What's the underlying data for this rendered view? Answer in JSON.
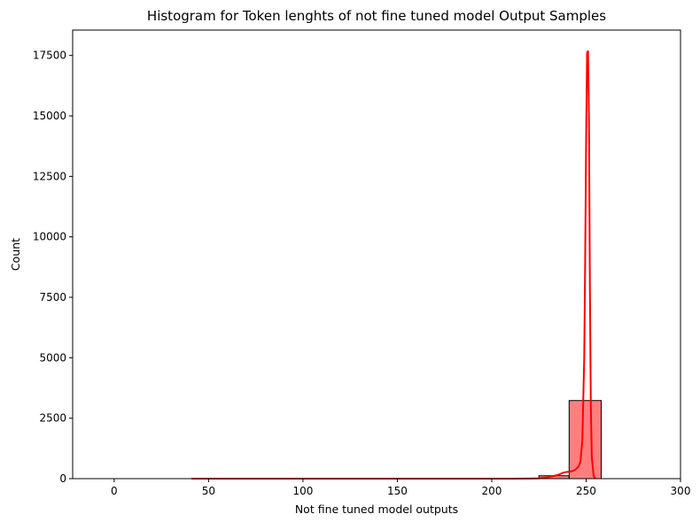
{
  "chart_data": {
    "type": "bar",
    "title": "Histogram for Token lenghts of not fine tuned model Output Samples",
    "xlabel": "Not fine tuned model outputs",
    "ylabel": "Count",
    "xlim": [
      -22,
      300
    ],
    "ylim": [
      0,
      18550
    ],
    "x_ticks": [
      0,
      50,
      100,
      150,
      200,
      250,
      300
    ],
    "y_ticks": [
      0,
      2500,
      5000,
      7500,
      10000,
      12500,
      15000,
      17500
    ],
    "bar_color": "#ff7f7f",
    "line_color": "#ff0000",
    "grid": false,
    "series": [
      {
        "kind": "histogram",
        "bins": [
          {
            "start": 41.0,
            "end": 56.6,
            "count": 0
          },
          {
            "start": 56.6,
            "end": 72.2,
            "count": 0
          },
          {
            "start": 72.2,
            "end": 87.8,
            "count": 0
          },
          {
            "start": 87.8,
            "end": 103.4,
            "count": 0
          },
          {
            "start": 103.4,
            "end": 119.0,
            "count": 0
          },
          {
            "start": 119.0,
            "end": 134.6,
            "count": 0
          },
          {
            "start": 134.6,
            "end": 150.2,
            "count": 0
          },
          {
            "start": 150.2,
            "end": 165.8,
            "count": 0
          },
          {
            "start": 165.8,
            "end": 181.4,
            "count": 0
          },
          {
            "start": 181.4,
            "end": 197.0,
            "count": 0
          },
          {
            "start": 197.0,
            "end": 212.6,
            "count": 0
          },
          {
            "start": 212.6,
            "end": 225.0,
            "count": 0
          },
          {
            "start": 225.0,
            "end": 241.0,
            "count": 120
          },
          {
            "start": 241.0,
            "end": 258.0,
            "count": 3230
          }
        ]
      },
      {
        "kind": "kde",
        "x": [
          41,
          60,
          80,
          100,
          120,
          140,
          160,
          180,
          200,
          210,
          220,
          225,
          230,
          235,
          238,
          240,
          242,
          244,
          246,
          247,
          248,
          249,
          249.5,
          250,
          250.5,
          251,
          251.5,
          252,
          252.5,
          253,
          254,
          255
        ],
        "y": [
          0,
          0,
          0,
          0,
          0,
          0,
          0,
          0,
          0,
          2,
          5,
          15,
          60,
          150,
          250,
          280,
          300,
          350,
          500,
          700,
          1600,
          5000,
          9000,
          14000,
          17600,
          17700,
          15000,
          8000,
          3000,
          900,
          100,
          0
        ]
      }
    ]
  }
}
